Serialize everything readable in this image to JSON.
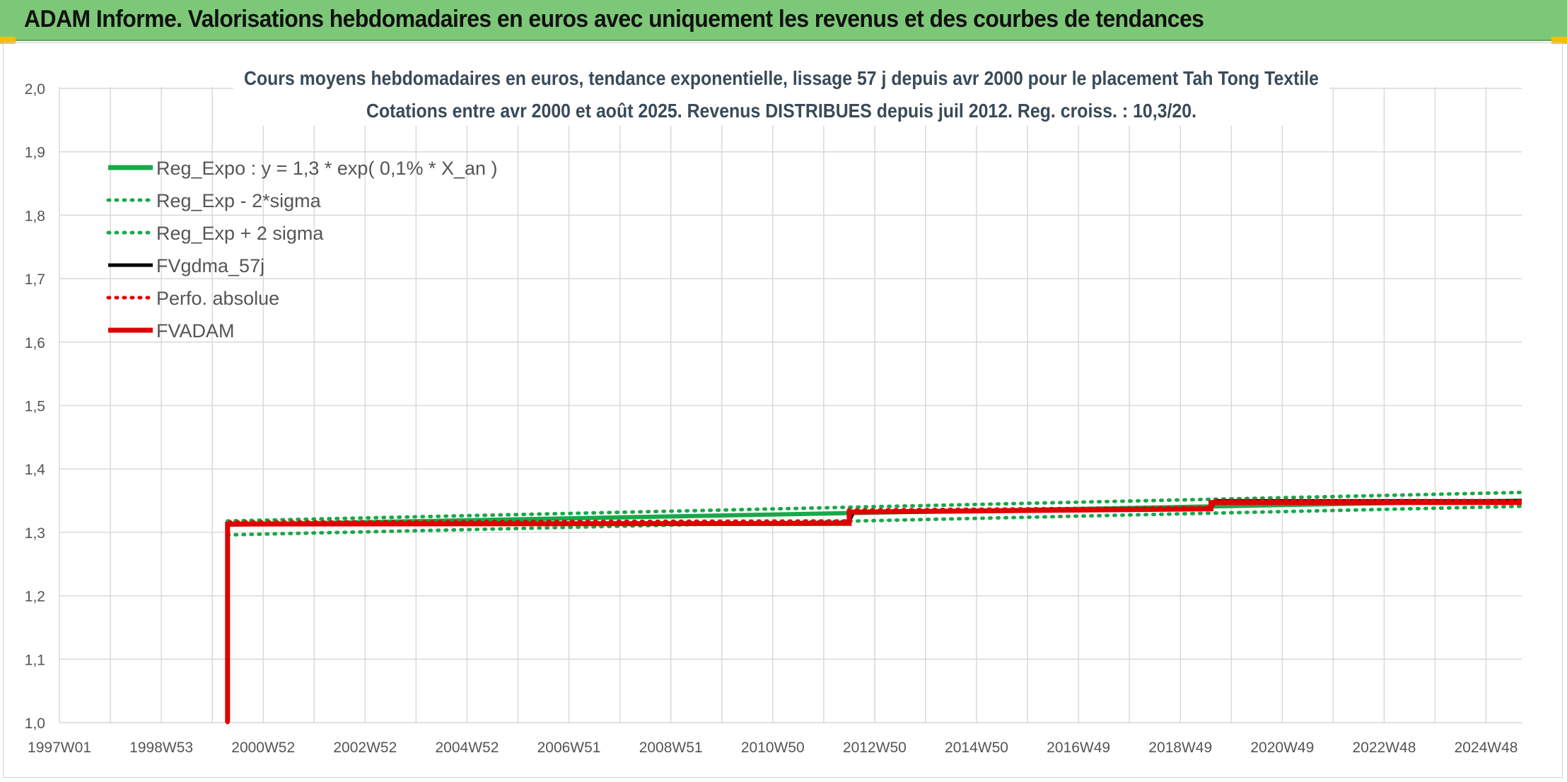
{
  "banner": {
    "title": "ADAM Informe. Valorisations hebdomadaires en euros avec uniquement les revenus et des courbes de tendances"
  },
  "colors": {
    "banner_bg": "#7dc878",
    "reg_green": "#1aa84a",
    "black": "#000000",
    "red": "#e00000",
    "grid": "#d9d9d9"
  },
  "chart_data": {
    "type": "line",
    "title": "Cours moyens hebdomadaires en euros, tendance exponentielle, lissage 57 j depuis avr 2000 pour le placement Tah Tong Textile",
    "subtitle": "Cotations entre avr 2000 et août 2025. Revenus DISTRIBUES depuis juil 2012. Reg. croiss. : 10,3/20.",
    "xlabel": "",
    "ylabel": "",
    "ylim": [
      1.0,
      2.0
    ],
    "yticks": [
      "1,0",
      "1,1",
      "1,2",
      "1,3",
      "1,4",
      "1,5",
      "1,6",
      "1,7",
      "1,8",
      "1,9",
      "2,0"
    ],
    "xlim": [
      1997.0,
      2025.7
    ],
    "xticks": [
      {
        "label": "1997W01",
        "x": 1997.0
      },
      {
        "label": "1998W53",
        "x": 1999.0
      },
      {
        "label": "2000W52",
        "x": 2001.0
      },
      {
        "label": "2002W52",
        "x": 2003.0
      },
      {
        "label": "2004W52",
        "x": 2005.0
      },
      {
        "label": "2006W51",
        "x": 2007.0
      },
      {
        "label": "2008W51",
        "x": 2009.0
      },
      {
        "label": "2010W50",
        "x": 2011.0
      },
      {
        "label": "2012W50",
        "x": 2013.0
      },
      {
        "label": "2014W50",
        "x": 2015.0
      },
      {
        "label": "2016W49",
        "x": 2017.0
      },
      {
        "label": "2018W49",
        "x": 2019.0
      },
      {
        "label": "2020W49",
        "x": 2021.0
      },
      {
        "label": "2022W48",
        "x": 2023.0
      },
      {
        "label": "2024W48",
        "x": 2025.0
      }
    ],
    "grid": true,
    "legend_position": "top-left",
    "series": [
      {
        "name": "Reg_Expo : y = 1,3 * exp( 0,1% *  X_an )",
        "style": "solid",
        "color": "#1aa84a",
        "x": [
          2000.3,
          2025.7
        ],
        "y": [
          1.312,
          1.35
        ]
      },
      {
        "name": "Reg_Exp - 2*sigma",
        "style": "dotted",
        "color": "#1aa84a",
        "x": [
          2000.3,
          2025.7
        ],
        "y": [
          1.296,
          1.341
        ]
      },
      {
        "name": "Reg_Exp + 2 sigma",
        "style": "dotted",
        "color": "#1aa84a",
        "x": [
          2000.3,
          2025.7
        ],
        "y": [
          1.318,
          1.363
        ]
      },
      {
        "name": "FVgdma_57j",
        "style": "solid",
        "color": "#000000",
        "x": [
          2000.3,
          2000.3,
          2012.5,
          2012.6,
          2019.6,
          2019.7,
          2025.7
        ],
        "y": [
          1.0,
          1.312,
          1.316,
          1.333,
          1.338,
          1.35,
          1.35
        ]
      },
      {
        "name": "Perfo. absolue",
        "style": "dotted",
        "color": "#e00000",
        "x": [
          2000.3,
          2000.3,
          2012.5,
          2012.5,
          2019.6,
          2019.6,
          2025.7
        ],
        "y": [
          1.0,
          1.316,
          1.318,
          1.335,
          1.339,
          1.35,
          1.35
        ]
      },
      {
        "name": "FVADAM",
        "style": "solid",
        "color": "#e00000",
        "x": [
          2000.3,
          2000.3,
          2012.5,
          2012.5,
          2019.6,
          2019.6,
          2025.7
        ],
        "y": [
          1.0,
          1.313,
          1.314,
          1.332,
          1.337,
          1.347,
          1.347
        ]
      }
    ]
  }
}
